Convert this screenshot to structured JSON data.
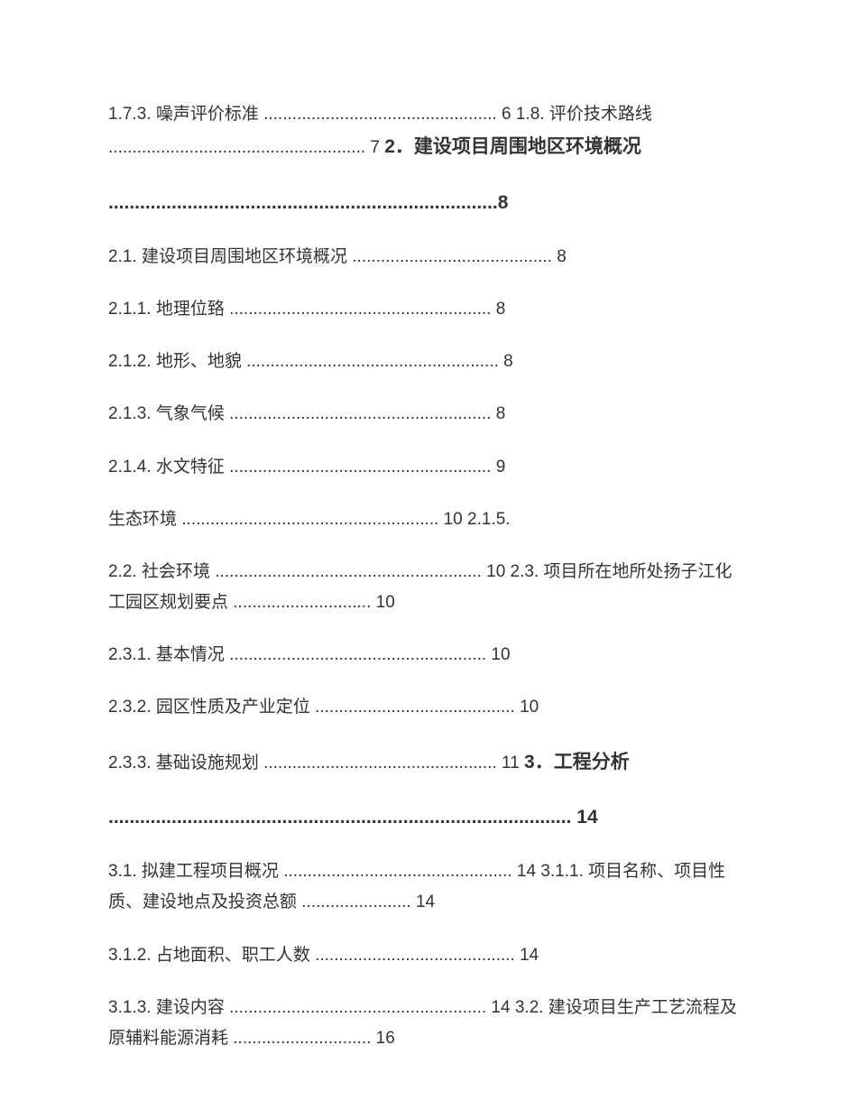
{
  "blocks": [
    {
      "parts": [
        {
          "text": "1.7.3. 噪声评价标准 ................................................. 6 1.8. 评价技术路线 ...................................................... 7 ",
          "bold": false
        },
        {
          "text": "2．建设项目周围地区环境概况",
          "bold": true
        }
      ]
    },
    {
      "parts": [
        {
          "text": "..........................................................................8",
          "bold": true
        }
      ]
    },
    {
      "parts": [
        {
          "text": "2.1. 建设项目周围地区环境概况 .......................................... 8",
          "bold": false
        }
      ]
    },
    {
      "parts": [
        {
          "text": "2.1.1. 地理位臵 ....................................................... 8",
          "bold": false
        }
      ]
    },
    {
      "parts": [
        {
          "text": "2.1.2. 地形、地貌 ..................................................... 8",
          "bold": false
        }
      ]
    },
    {
      "parts": [
        {
          "text": "2.1.3. 气象气候 ....................................................... 8",
          "bold": false
        }
      ]
    },
    {
      "parts": [
        {
          "text": "2.1.4. 水文特征 ....................................................... 9",
          "bold": false
        }
      ]
    },
    {
      "parts": [
        {
          "text": "生态环境 ...................................................... 10 2.1.5.",
          "bold": false
        }
      ]
    },
    {
      "parts": [
        {
          "text": "2.2. 社会环境 ........................................................ 10 2.3. 项目所在地所处扬子江化工园区规划要点 ............................. 10",
          "bold": false
        }
      ]
    },
    {
      "parts": [
        {
          "text": "2.3.1. 基本情况 ...................................................... 10",
          "bold": false
        }
      ]
    },
    {
      "parts": [
        {
          "text": "2.3.2. 园区性质及产业定位 .......................................... 10",
          "bold": false
        }
      ]
    },
    {
      "parts": [
        {
          "text": "2.3.3. 基础设施规划 ................................................. 11 ",
          "bold": false
        },
        {
          "text": "3．工程分析",
          "bold": true
        }
      ]
    },
    {
      "parts": [
        {
          "text": "........................................................................................ 14",
          "bold": true
        }
      ]
    },
    {
      "parts": [
        {
          "text": "3.1. 拟建工程项目概况 ................................................ 14 3.1.1. 项目名称、项目性质、建设地点及投资总额 ....................... 14",
          "bold": false
        }
      ]
    },
    {
      "parts": [
        {
          "text": "3.1.2. 占地面积、职工人数 .......................................... 14",
          "bold": false
        }
      ]
    },
    {
      "parts": [
        {
          "text": "3.1.3. 建设内容 ...................................................... 14 3.2. 建设项目生产工艺流程及原辅料能源消耗 ............................. 16",
          "bold": false
        }
      ]
    }
  ]
}
